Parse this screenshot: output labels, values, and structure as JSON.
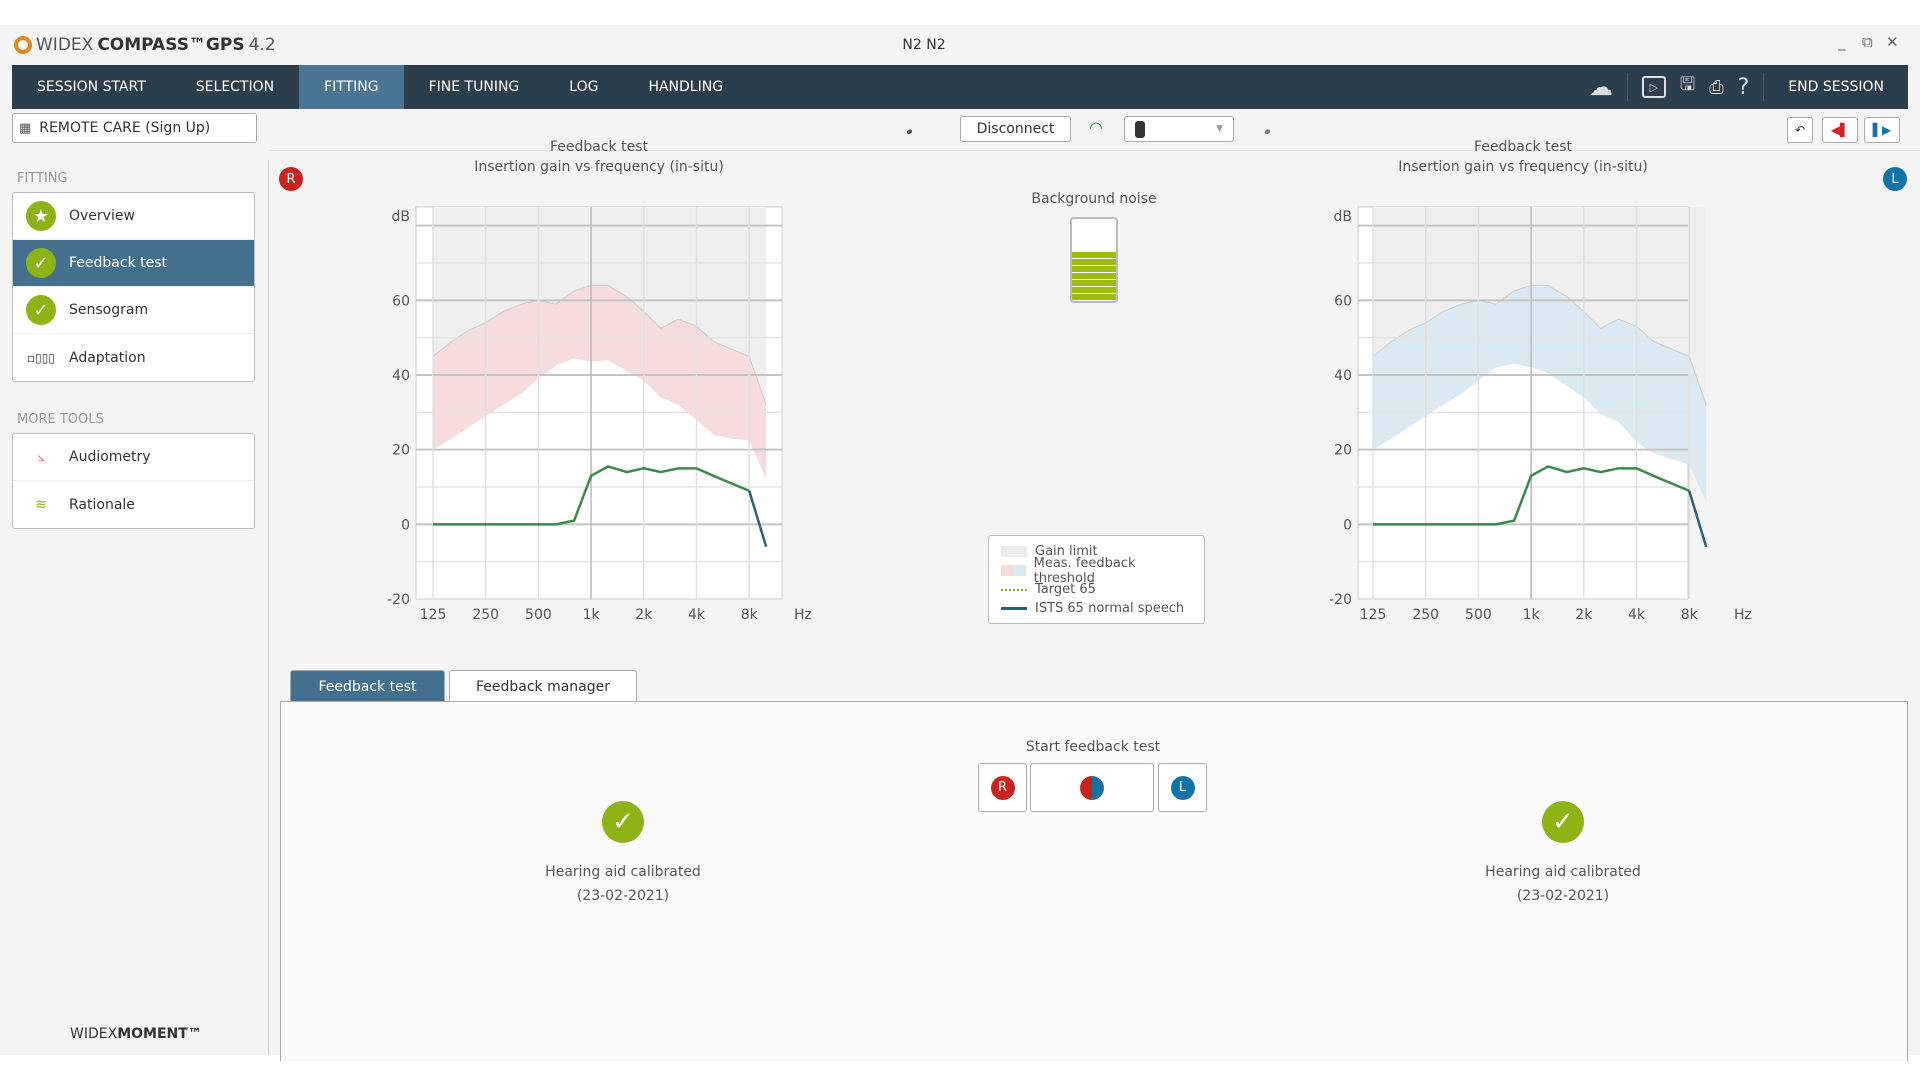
{
  "app": {
    "brand_light": "WIDEX",
    "brand_bold": "COMPASS™GPS",
    "version": "4.2",
    "window_title": "N2 N2"
  },
  "nav": {
    "tabs": [
      {
        "label": "SESSION START"
      },
      {
        "label": "SELECTION"
      },
      {
        "label": "FITTING"
      },
      {
        "label": "FINE TUNING"
      },
      {
        "label": "LOG"
      },
      {
        "label": "HANDLING"
      }
    ],
    "end_session": "END SESSION"
  },
  "toolbar": {
    "remote_care": "REMOTE CARE (Sign Up)",
    "disconnect": "Disconnect"
  },
  "sidebar": {
    "fitting_header": "FITTING",
    "fitting_items": [
      {
        "label": "Overview"
      },
      {
        "label": "Feedback test"
      },
      {
        "label": "Sensogram"
      },
      {
        "label": "Adaptation"
      }
    ],
    "more_header": "MORE TOOLS",
    "more_items": [
      {
        "label": "Audiometry"
      },
      {
        "label": "Rationale"
      }
    ],
    "footer_light": "WIDEX",
    "footer_bold": "MOMENT™"
  },
  "ears": {
    "right": "R",
    "left": "L",
    "right_color": "#c8231e",
    "left_color": "#1572a8"
  },
  "background_noise": {
    "label": "Background noise",
    "level_fraction": 0.6
  },
  "legend": {
    "gain_limit": "Gain limit",
    "threshold": "Meas. feedback threshold",
    "target": "Target 65",
    "ists": "ISTS 65 normal speech"
  },
  "chart_data": [
    {
      "type": "area",
      "side": "right",
      "title": "Feedback test",
      "subtitle": "Insertion gain vs frequency (in-situ)",
      "ylabel": "dB",
      "xlabel": "Hz",
      "ylim": [
        -20,
        85
      ],
      "yticks": [
        -20,
        0,
        20,
        40,
        60
      ],
      "xticks": [
        "125",
        "250",
        "500",
        "1k",
        "2k",
        "4k",
        "8k"
      ],
      "x": [
        125,
        160,
        200,
        250,
        315,
        400,
        500,
        630,
        800,
        1000,
        1250,
        1600,
        2000,
        2500,
        3150,
        4000,
        5000,
        6300,
        8000,
        10000
      ],
      "gain_limit": [
        45,
        49,
        52,
        54,
        57,
        59,
        60,
        59,
        62.5,
        64,
        64,
        61,
        57,
        52.5,
        55,
        53,
        49,
        47,
        45,
        32
      ],
      "feedback_threshold_low": [
        20,
        23,
        26,
        29,
        32,
        35,
        39,
        42.5,
        44.5,
        43.5,
        44,
        41,
        38.5,
        34,
        32,
        28,
        24,
        23,
        22.5,
        12
      ],
      "ists65": [
        0,
        0,
        0,
        0,
        0,
        0,
        0,
        0,
        1,
        13,
        15.5,
        14,
        15,
        14,
        15,
        15,
        13,
        11,
        9,
        -6
      ],
      "threshold_color": "#f6dcdc"
    },
    {
      "type": "area",
      "side": "left",
      "title": "Feedback test",
      "subtitle": "Insertion gain vs frequency (in-situ)",
      "ylabel": "dB",
      "xlabel": "Hz",
      "ylim": [
        -20,
        85
      ],
      "yticks": [
        -20,
        0,
        20,
        40,
        60
      ],
      "xticks": [
        "125",
        "250",
        "500",
        "1k",
        "2k",
        "4k",
        "8k"
      ],
      "x": [
        125,
        160,
        200,
        250,
        315,
        400,
        500,
        630,
        800,
        1000,
        1250,
        1600,
        2000,
        2500,
        3150,
        4000,
        5000,
        6300,
        8000,
        10000
      ],
      "gain_limit": [
        45,
        49,
        52,
        54,
        57,
        59,
        60,
        59,
        62.5,
        64,
        64,
        61,
        57,
        52.5,
        55,
        53,
        49,
        47,
        45,
        32
      ],
      "feedback_threshold_low": [
        20,
        23,
        26,
        29,
        32,
        35,
        38.5,
        42,
        43,
        42,
        40.5,
        37,
        34,
        29.5,
        27.5,
        22,
        19,
        17.5,
        16,
        6
      ],
      "ists65": [
        0,
        0,
        0,
        0,
        0,
        0,
        0,
        0,
        1,
        13,
        15.5,
        14,
        15,
        14,
        15,
        15,
        13,
        11,
        9,
        -6
      ],
      "threshold_color": "#dbeaf2"
    }
  ],
  "bottom": {
    "tabs": [
      {
        "label": "Feedback test"
      },
      {
        "label": "Feedback manager"
      }
    ],
    "start_label": "Start feedback test",
    "right_status": "Hearing aid calibrated",
    "right_date": "(23-02-2021)",
    "left_status": "Hearing aid calibrated",
    "left_date": "(23-02-2021)"
  }
}
